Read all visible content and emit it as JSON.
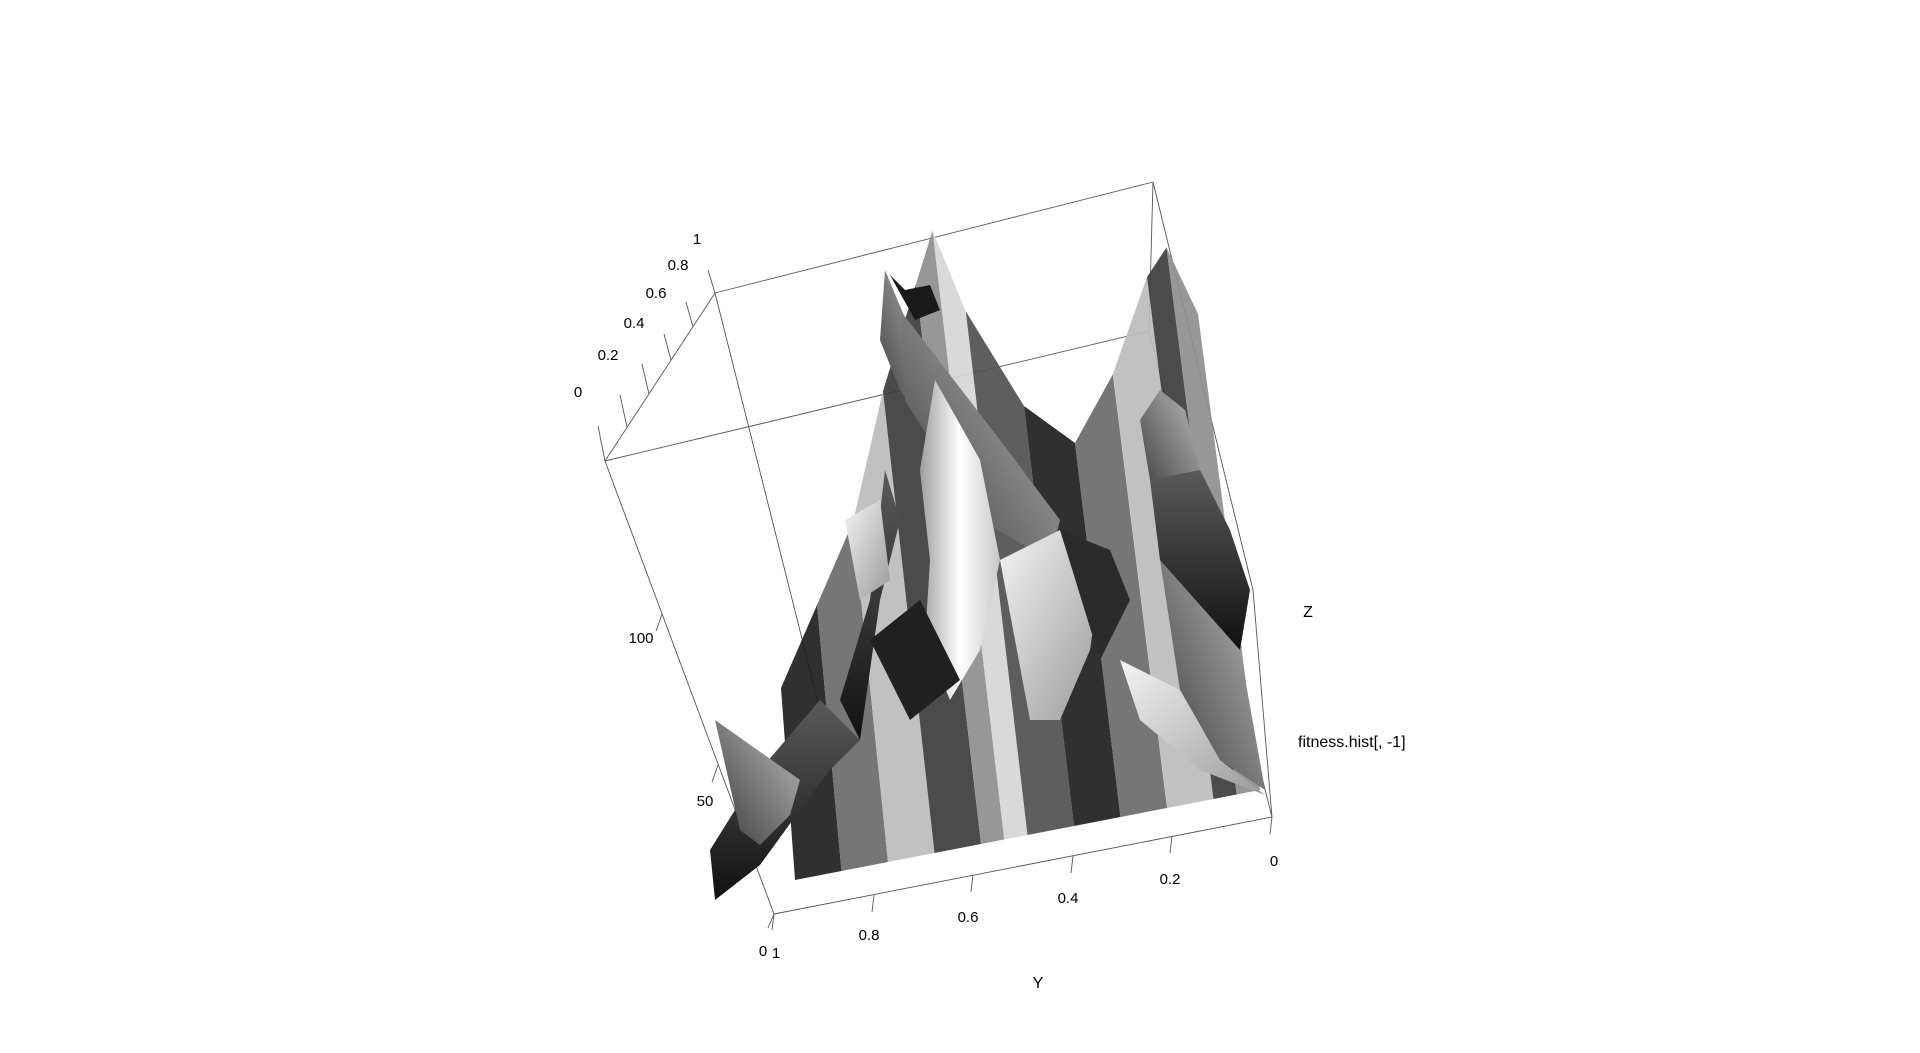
{
  "chart_data": {
    "type": "surface3d",
    "axes": {
      "z": {
        "title": "Z",
        "ticks": [
          "0",
          "0.2",
          "0.4",
          "0.6",
          "0.8",
          "1"
        ],
        "range": [
          0,
          1
        ]
      },
      "y": {
        "title": "Y",
        "ticks": [
          "1",
          "0.8",
          "0.6",
          "0.4",
          "0.2",
          "0"
        ],
        "range": [
          0,
          1
        ]
      },
      "x": {
        "title": "fitness.hist[, -1]",
        "ticks": [
          "0",
          "50",
          "100"
        ],
        "range": [
          0,
          150
        ]
      }
    },
    "surface": {
      "description_free": true,
      "shading": "grayscale",
      "peaks": [
        {
          "y": 0.55,
          "x": 140,
          "z": 1.0
        },
        {
          "y": 0.05,
          "x": 60,
          "z": 0.85
        }
      ],
      "ridge_profile_y": [
        1.0,
        0.9,
        0.8,
        0.7,
        0.6,
        0.55,
        0.5,
        0.4,
        0.3,
        0.2,
        0.1,
        0.05,
        0.0
      ],
      "ridge_profile_z": [
        0.15,
        0.3,
        0.45,
        0.7,
        0.9,
        1.0,
        0.82,
        0.6,
        0.5,
        0.62,
        0.8,
        0.85,
        0.7
      ]
    }
  }
}
